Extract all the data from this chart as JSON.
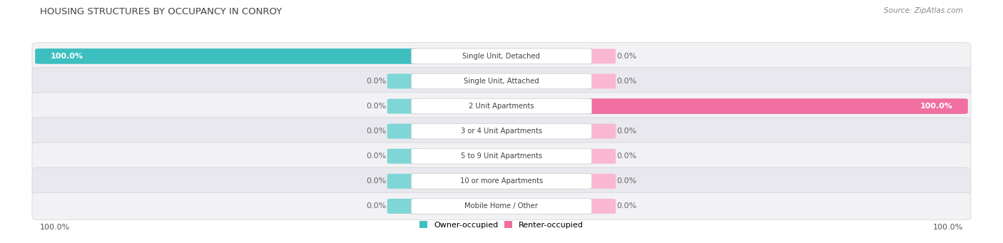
{
  "title": "HOUSING STRUCTURES BY OCCUPANCY IN CONROY",
  "source": "Source: ZipAtlas.com",
  "categories": [
    "Single Unit, Detached",
    "Single Unit, Attached",
    "2 Unit Apartments",
    "3 or 4 Unit Apartments",
    "5 to 9 Unit Apartments",
    "10 or more Apartments",
    "Mobile Home / Other"
  ],
  "owner_values": [
    100.0,
    0.0,
    0.0,
    0.0,
    0.0,
    0.0,
    0.0
  ],
  "renter_values": [
    0.0,
    0.0,
    100.0,
    0.0,
    0.0,
    0.0,
    0.0
  ],
  "owner_color": "#3dbfbf",
  "renter_color": "#f06fa0",
  "renter_stub_color": "#f9b8d0",
  "owner_stub_color": "#7fd6d6",
  "row_bg_color_odd": "#f2f2f5",
  "row_bg_color_even": "#e8e8ee",
  "title_color": "#444444",
  "source_color": "#888888",
  "label_text_color": "#444444",
  "value_text_color_white": "#ffffff",
  "value_text_color_dark": "#666666",
  "fig_width": 14.06,
  "fig_height": 3.41,
  "dpi": 100
}
